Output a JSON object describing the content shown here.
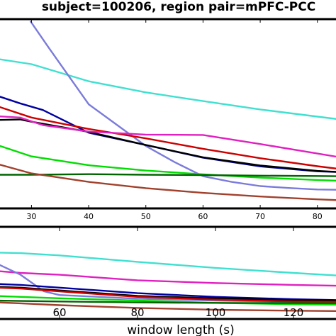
{
  "title": "subject=100206, region pair=mPFC-PCC",
  "chart_data": [
    {
      "type": "line",
      "panel": "top",
      "x_ticks": [
        30,
        40,
        50,
        60,
        70,
        80
      ],
      "xlim": [
        24,
        84
      ],
      "ylim": [
        0,
        1
      ],
      "series": [
        {
          "color": "#40e0d0",
          "x": [
            24,
            30,
            40,
            50,
            60,
            70,
            80,
            84
          ],
          "y": [
            0.79,
            0.762,
            0.672,
            0.613,
            0.567,
            0.523,
            0.485,
            0.47
          ]
        },
        {
          "color": "#7b7bdb",
          "x": [
            29.8,
            33,
            40,
            45,
            50,
            55,
            60,
            65,
            70,
            75,
            80,
            84
          ],
          "y": [
            0.99,
            0.85,
            0.55,
            0.44,
            0.33,
            0.245,
            0.17,
            0.14,
            0.118,
            0.108,
            0.1,
            0.098
          ]
        },
        {
          "color": "#0000a0",
          "x": [
            24,
            28,
            32,
            40,
            50,
            60,
            70,
            80,
            84
          ],
          "y": [
            0.595,
            0.555,
            0.52,
            0.4,
            0.335,
            0.268,
            0.222,
            0.196,
            0.192
          ]
        },
        {
          "color": "#cc0000",
          "x": [
            24,
            30,
            40,
            50,
            60,
            70,
            80,
            84
          ],
          "y": [
            0.54,
            0.48,
            0.42,
            0.37,
            0.315,
            0.265,
            0.223,
            0.208
          ]
        },
        {
          "color": "#000000",
          "x": [
            24,
            28,
            30,
            40,
            50,
            60,
            70,
            80,
            84
          ],
          "y": [
            0.467,
            0.47,
            0.458,
            0.404,
            0.335,
            0.27,
            0.227,
            0.198,
            0.192
          ]
        },
        {
          "color": "#e020c0",
          "x": [
            24,
            28,
            32,
            40,
            50,
            60,
            70,
            80,
            84
          ],
          "y": [
            0.487,
            0.48,
            0.44,
            0.406,
            0.39,
            0.388,
            0.34,
            0.29,
            0.27
          ]
        },
        {
          "color": "#00dd00",
          "x": [
            24,
            30,
            40,
            50,
            60,
            70,
            80,
            84
          ],
          "y": [
            0.335,
            0.275,
            0.228,
            0.2,
            0.18,
            0.163,
            0.15,
            0.146
          ]
        },
        {
          "color": "#006400",
          "x": [
            24,
            30,
            40,
            50,
            60,
            70,
            80,
            84
          ],
          "y": [
            0.178,
            0.178,
            0.181,
            0.178,
            0.176,
            0.173,
            0.171,
            0.17
          ]
        },
        {
          "color": "#a0412d",
          "x": [
            24,
            30,
            40,
            50,
            60,
            70,
            80,
            84
          ],
          "y": [
            0.235,
            0.185,
            0.14,
            0.107,
            0.082,
            0.063,
            0.048,
            0.043
          ]
        }
      ]
    },
    {
      "type": "line",
      "panel": "bottom",
      "x_ticks": [
        60,
        80,
        100,
        120
      ],
      "xlim": [
        44,
        132
      ],
      "ylim": [
        0,
        1
      ],
      "xlabel": "window length (s)",
      "series": [
        {
          "color": "#40e0d0",
          "x": [
            44,
            50,
            60,
            80,
            100,
            120,
            132
          ],
          "y": [
            0.72,
            0.715,
            0.69,
            0.62,
            0.555,
            0.5,
            0.47
          ]
        },
        {
          "color": "#e020c0",
          "x": [
            44,
            50,
            60,
            80,
            100,
            120,
            132
          ],
          "y": [
            0.52,
            0.5,
            0.48,
            0.42,
            0.39,
            0.37,
            0.36
          ]
        },
        {
          "color": "#7b7bdb",
          "x": [
            44,
            50,
            56,
            60,
            80,
            100,
            120,
            132
          ],
          "y": [
            0.6,
            0.48,
            0.3,
            0.26,
            0.22,
            0.2,
            0.185,
            0.18
          ]
        },
        {
          "color": "#0000a0",
          "x": [
            44,
            50,
            60,
            80,
            100,
            120,
            132
          ],
          "y": [
            0.38,
            0.37,
            0.34,
            0.28,
            0.24,
            0.215,
            0.205
          ]
        },
        {
          "color": "#000000",
          "x": [
            44,
            50,
            60,
            80,
            100,
            120,
            132
          ],
          "y": [
            0.35,
            0.34,
            0.31,
            0.25,
            0.225,
            0.205,
            0.2
          ]
        },
        {
          "color": "#cc0000",
          "x": [
            44,
            50,
            60,
            80,
            100,
            120,
            132
          ],
          "y": [
            0.34,
            0.33,
            0.3,
            0.24,
            0.21,
            0.19,
            0.185
          ]
        },
        {
          "color": "#00dd00",
          "x": [
            44,
            50,
            60,
            80,
            100,
            120,
            132
          ],
          "y": [
            0.25,
            0.24,
            0.225,
            0.2,
            0.175,
            0.16,
            0.155
          ]
        },
        {
          "color": "#006400",
          "x": [
            44,
            50,
            60,
            80,
            100,
            120,
            132
          ],
          "y": [
            0.2,
            0.195,
            0.19,
            0.18,
            0.175,
            0.172,
            0.17
          ]
        },
        {
          "color": "#a0412d",
          "x": [
            44,
            50,
            60,
            80,
            100,
            120,
            132
          ],
          "y": [
            0.18,
            0.17,
            0.15,
            0.12,
            0.1,
            0.09,
            0.085
          ]
        }
      ]
    }
  ]
}
